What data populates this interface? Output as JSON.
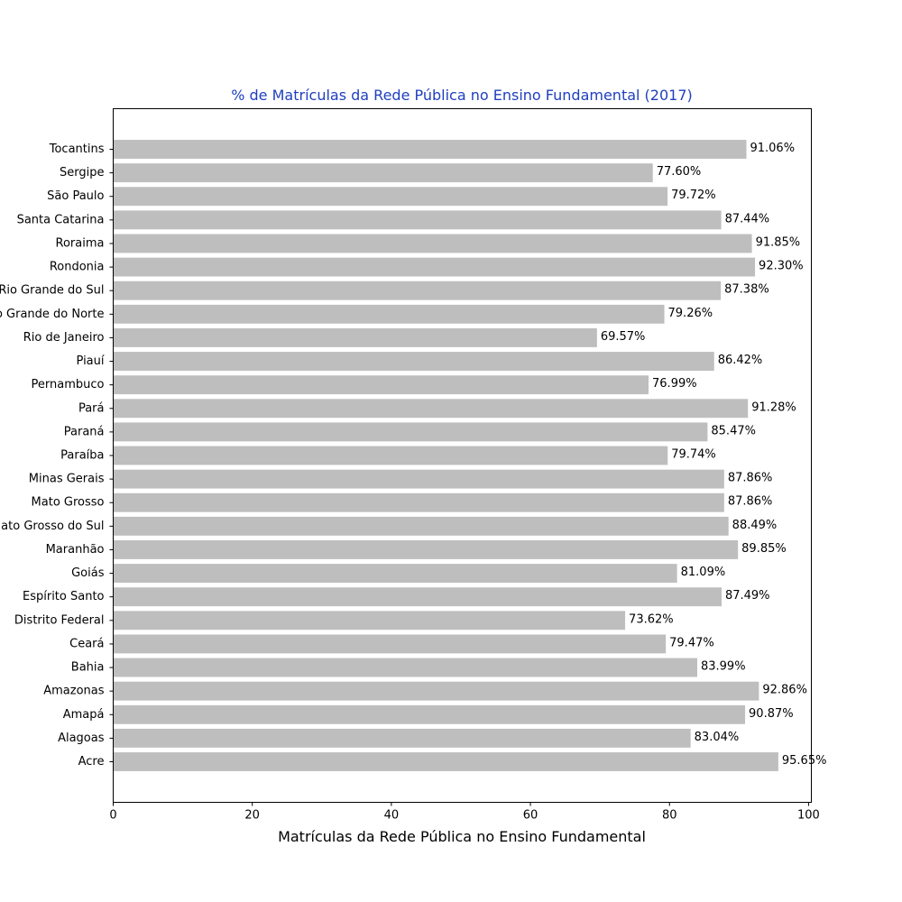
{
  "colors": {
    "bar": "#bebebe",
    "title": "#1f3fbf",
    "axis": "#000000"
  },
  "chart_data": {
    "type": "bar",
    "orientation": "horizontal",
    "title": "% de Matrículas da Rede Pública no Ensino Fundamental (2017)",
    "xlabel": "Matrículas da Rede Pública no Ensino Fundamental",
    "ylabel": "",
    "xlim": [
      0,
      100.4
    ],
    "xticks": [
      0,
      20,
      40,
      60,
      80,
      100
    ],
    "grid": false,
    "categories": [
      "Acre",
      "Alagoas",
      "Amapá",
      "Amazonas",
      "Bahia",
      "Ceará",
      "Distrito Federal",
      "Espírito Santo",
      "Goiás",
      "Maranhão",
      "Mato Grosso do Sul",
      "Mato Grosso",
      "Minas Gerais",
      "Paraíba",
      "Paraná",
      "Pará",
      "Pernambuco",
      "Piauí",
      "Rio de Janeiro",
      "Rio Grande do Norte",
      "Rio Grande do Sul",
      "Rondonia",
      "Roraima",
      "Santa Catarina",
      "São Paulo",
      "Sergipe",
      "Tocantins"
    ],
    "values": [
      95.65,
      83.04,
      90.87,
      92.86,
      83.99,
      79.47,
      73.62,
      87.49,
      81.09,
      89.85,
      88.49,
      87.86,
      87.86,
      79.74,
      85.47,
      91.28,
      76.99,
      86.42,
      69.57,
      79.26,
      87.38,
      92.3,
      91.85,
      87.44,
      79.72,
      77.6,
      91.06
    ],
    "data_labels": [
      "95.65%",
      "83.04%",
      "90.87%",
      "92.86%",
      "83.99%",
      "79.47%",
      "73.62%",
      "87.49%",
      "81.09%",
      "89.85%",
      "88.49%",
      "87.86%",
      "87.86%",
      "79.74%",
      "85.47%",
      "91.28%",
      "76.99%",
      "86.42%",
      "69.57%",
      "79.26%",
      "87.38%",
      "92.30%",
      "91.85%",
      "87.44%",
      "79.72%",
      "77.60%",
      "91.06%"
    ]
  }
}
